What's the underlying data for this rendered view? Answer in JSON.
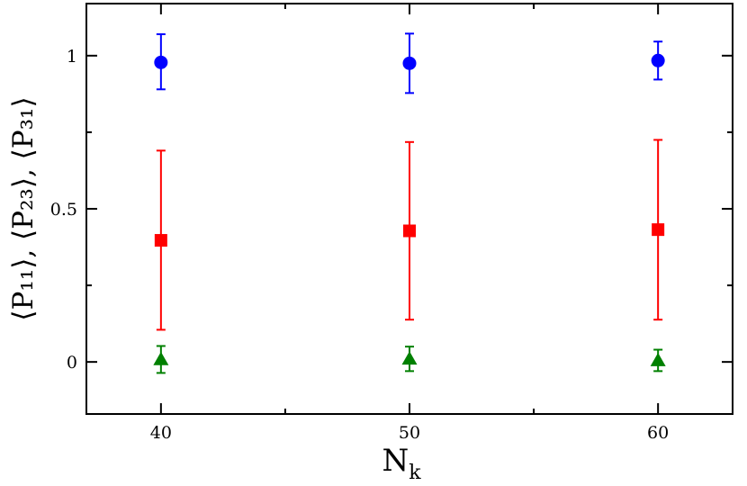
{
  "chart_data": {
    "type": "scatter",
    "title": "",
    "xlabel": "N",
    "xlabel_sub": "k",
    "ylabel": "⟨P₁₁⟩, ⟨P₂₃⟩, ⟨P₃₁⟩",
    "xlim": [
      37,
      63
    ],
    "ylim": [
      -0.17,
      1.17
    ],
    "x_ticks": [
      40,
      50,
      60
    ],
    "x_minor_ticks": [
      45,
      55
    ],
    "y_ticks": [
      0,
      0.5,
      1
    ],
    "y_tick_labels": [
      "0",
      "0.5",
      "1"
    ],
    "y_minor_ticks": [
      0.25,
      0.75
    ],
    "grid": false,
    "series": [
      {
        "marker": "circle",
        "color": "#0000ff",
        "x": [
          40,
          50,
          60
        ],
        "y": [
          0.978,
          0.975,
          0.984
        ],
        "err_low": [
          0.89,
          0.878,
          0.922
        ],
        "err_high": [
          1.07,
          1.072,
          1.046
        ]
      },
      {
        "marker": "square",
        "color": "#ff0000",
        "x": [
          40,
          50,
          60
        ],
        "y": [
          0.397,
          0.428,
          0.432
        ],
        "err_low": [
          0.105,
          0.138,
          0.138
        ],
        "err_high": [
          0.69,
          0.718,
          0.725
        ]
      },
      {
        "marker": "triangle",
        "color": "#008000",
        "x": [
          40,
          50,
          60
        ],
        "y": [
          0.008,
          0.01,
          0.005
        ],
        "err_low": [
          -0.036,
          -0.03,
          -0.03
        ],
        "err_high": [
          0.052,
          0.05,
          0.04
        ]
      }
    ]
  }
}
